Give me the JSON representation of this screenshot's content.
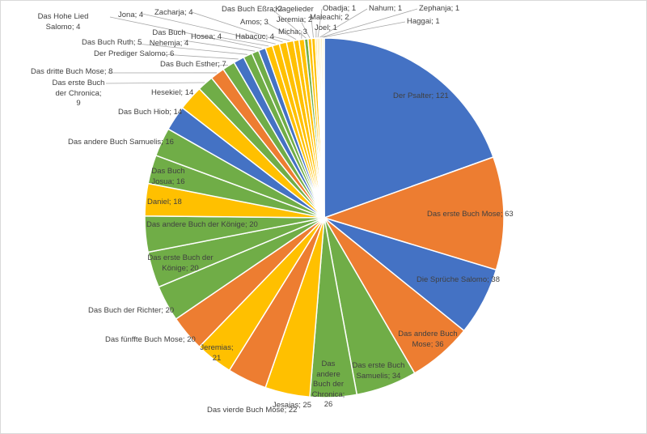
{
  "chart_data": {
    "type": "pie",
    "title": "",
    "legend": "none",
    "start_angle_deg": 0,
    "direction": "clockwise",
    "categories": [
      "Der Psalter",
      "Das erste Buch Mose",
      "Die Sprüche Salomo",
      "Das andere Buch Mose",
      "Das erste Buch Samuelis",
      "Das andere Buch der Chronica",
      "Jesaias",
      "Das vierde Buch Mose",
      "Jeremias",
      "Das fünffte Buch Mose",
      "Das Buch der Richter",
      "Das erste Buch der Könige",
      "Das andere Buch der Könige",
      "Daniel",
      "Das Buch Josua",
      "Das andere Buch Samuelis",
      "Das Buch Hiob",
      "Hesekiel",
      "Das erste Buch der Chronica",
      "Das dritte Buch Mose",
      "Das Buch Esther",
      "Der Prediger Salomo",
      "Das Buch Ruth",
      "Das Buch Nehemja",
      "Das Hohe Lied Salomo",
      "Hosea",
      "Jona",
      "Zacharja",
      "Habacuc",
      "Amos",
      "Micha",
      "Das Buch Eßra",
      "Klagelieder Jeremia",
      "Maleachi",
      "Joel",
      "Obadja",
      "Nahum",
      "Zephanja",
      "Haggai"
    ],
    "values": [
      121,
      63,
      38,
      36,
      34,
      26,
      25,
      22,
      21,
      20,
      20,
      20,
      20,
      18,
      16,
      16,
      14,
      14,
      9,
      8,
      7,
      6,
      5,
      4,
      4,
      4,
      4,
      4,
      4,
      3,
      3,
      2,
      2,
      2,
      1,
      1,
      1,
      1,
      1
    ],
    "data_labels": [
      "Der Psalter; 121",
      "Das erste Buch Mose; 63",
      "Die Sprüche Salomo; 38",
      "Das andere Buch\nMose; 36",
      "Das erste Buch\nSamuelis; 34",
      "Das\nandere\nBuch der\nChronica;\n26",
      "Jesaias; 25",
      "Das vierde Buch Mose; 22",
      "Jeremias;\n21",
      "Das fünffte Buch Mose; 20",
      "Das Buch der Richter; 20",
      "Das erste Buch der\nKönige; 20",
      "Das andere Buch der Könige; 20",
      "Daniel; 18",
      "Das Buch\nJosua; 16",
      "Das andere Buch Samuelis; 16",
      "Das Buch Hiob; 14",
      "Hesekiel; 14",
      "Das erste Buch\nder Chronica;\n9",
      "Das dritte Buch Mose; 8",
      "Das Buch Esther; 7",
      "Der Prediger Salomo; 6",
      "Das Buch Ruth; 5",
      "Das Buch\nNehemja; 4",
      "Das Hohe Lied\nSalomo; 4",
      "Hosea; 4",
      "Jona; 4",
      "Zacharja; 4",
      "Habacuc; 4",
      "Amos; 3",
      "Micha; 3",
      "Das Buch Eßra; 2",
      "Klagelieder\nJeremia; 2",
      "Maleachi; 2",
      "Joel; 1",
      "Obadja; 1",
      "Nahum; 1",
      "Zephanja; 1",
      "Haggai; 1"
    ],
    "colors": [
      "#4472C4",
      "#ED7D31",
      "#4472C4",
      "#ED7D31",
      "#70AD47",
      "#70AD47",
      "#FFC000",
      "#ED7D31",
      "#FFC000",
      "#ED7D31",
      "#70AD47",
      "#70AD47",
      "#70AD47",
      "#FFC000",
      "#70AD47",
      "#70AD47",
      "#4472C4",
      "#FFC000",
      "#70AD47",
      "#ED7D31",
      "#70AD47",
      "#4472C4",
      "#70AD47",
      "#70AD47",
      "#4472C4",
      "#FFC000",
      "#FFC000",
      "#FFC000",
      "#FFC000",
      "#FFC000",
      "#FFC000",
      "#70AD47",
      "#FFC000",
      "#FFC000",
      "#FFD966",
      "#FFD966",
      "#FFE699",
      "#FFE699",
      "#FFF2CC"
    ]
  }
}
